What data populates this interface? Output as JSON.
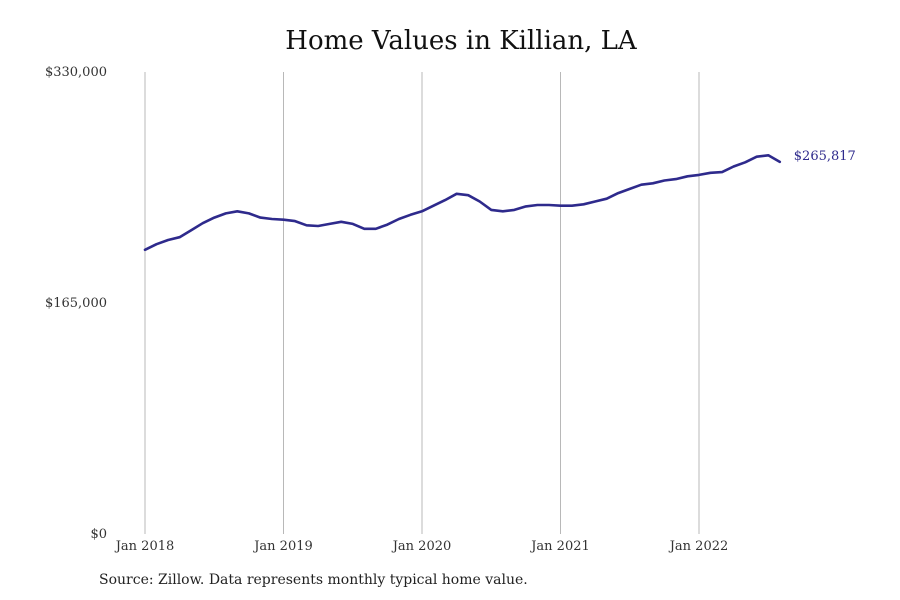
{
  "colors": {
    "line": "#2e2a8c",
    "grid": "#b8b8b8",
    "text": "#333333"
  },
  "chart_data": {
    "type": "line",
    "title": "Home Values in Killian, LA",
    "source_note": "Source: Zillow. Data represents monthly typical home value.",
    "ylim": [
      0,
      330000
    ],
    "y_ticks": [
      0,
      165000,
      330000
    ],
    "y_tick_labels": [
      "$0",
      "$165,000",
      "$330,000"
    ],
    "x_ticks": [
      "2018-01",
      "2019-01",
      "2020-01",
      "2021-01",
      "2022-01"
    ],
    "x_tick_labels": [
      "Jan 2018",
      "Jan 2019",
      "Jan 2020",
      "Jan 2021",
      "Jan 2022"
    ],
    "grid": "vertical",
    "end_label": "$265,817",
    "series": [
      {
        "x": [
          "2018-01",
          "2018-02",
          "2018-03",
          "2018-04",
          "2018-05",
          "2018-06",
          "2018-07",
          "2018-08",
          "2018-09",
          "2018-10",
          "2018-11",
          "2018-12",
          "2019-01",
          "2019-02",
          "2019-03",
          "2019-04",
          "2019-05",
          "2019-06",
          "2019-07",
          "2019-08",
          "2019-09",
          "2019-10",
          "2019-11",
          "2019-12",
          "2020-01",
          "2020-02",
          "2020-03",
          "2020-04",
          "2020-05",
          "2020-06",
          "2020-07",
          "2020-08",
          "2020-09",
          "2020-10",
          "2020-11",
          "2020-12",
          "2021-01",
          "2021-02",
          "2021-03",
          "2021-04",
          "2021-05",
          "2021-06",
          "2021-07",
          "2021-08",
          "2021-09",
          "2021-10",
          "2021-11",
          "2021-12",
          "2022-01",
          "2022-02",
          "2022-03",
          "2022-04",
          "2022-05",
          "2022-06",
          "2022-07",
          "2022-08"
        ],
        "values": [
          203000,
          207000,
          210000,
          212000,
          217000,
          222000,
          226000,
          229000,
          230500,
          229000,
          226000,
          225000,
          224500,
          223500,
          220500,
          220000,
          221500,
          223000,
          221500,
          218000,
          218000,
          221000,
          225000,
          228000,
          230500,
          234500,
          238500,
          243000,
          242000,
          237500,
          231500,
          230500,
          231500,
          234000,
          235000,
          235000,
          234500,
          234500,
          235500,
          237500,
          239500,
          243500,
          246500,
          249500,
          250500,
          252500,
          253500,
          255500,
          256500,
          258000,
          258500,
          262500,
          265500,
          269500,
          270500,
          265817
        ]
      }
    ]
  }
}
